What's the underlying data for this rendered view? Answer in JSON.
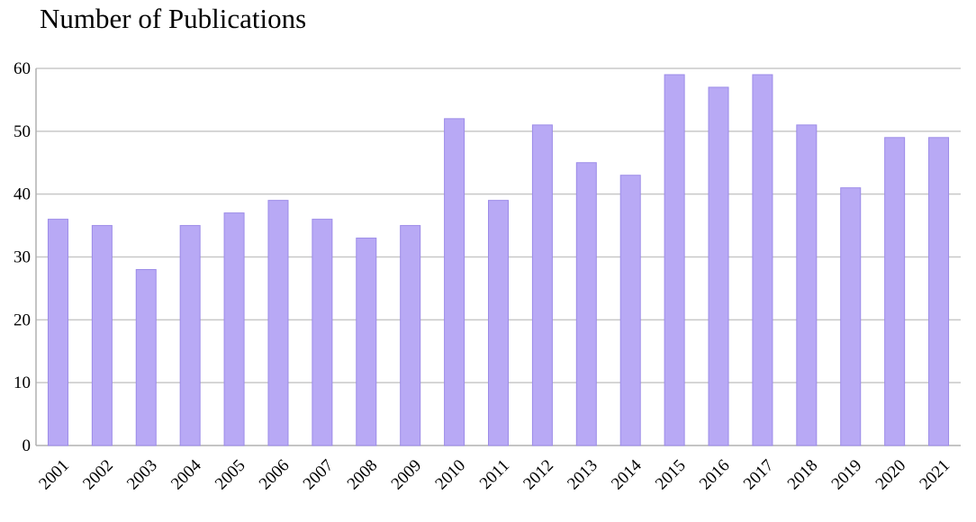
{
  "chart_data": {
    "type": "bar",
    "title": "Number of Publications",
    "xlabel": "",
    "ylabel": "",
    "categories": [
      "2001",
      "2002",
      "2003",
      "2004",
      "2005",
      "2006",
      "2007",
      "2008",
      "2009",
      "2010",
      "2011",
      "2012",
      "2013",
      "2014",
      "2015",
      "2016",
      "2017",
      "2018",
      "2019",
      "2020",
      "2021"
    ],
    "values": [
      36,
      35,
      28,
      35,
      37,
      39,
      36,
      33,
      35,
      52,
      39,
      51,
      45,
      43,
      59,
      57,
      59,
      51,
      41,
      49,
      49
    ],
    "ylim": [
      0,
      60
    ],
    "yticks": [
      0,
      10,
      20,
      30,
      40,
      50,
      60
    ],
    "grid": true,
    "legend": "none",
    "bar_color": "#b8a9f5",
    "bar_edge_color": "#9c8be8"
  }
}
